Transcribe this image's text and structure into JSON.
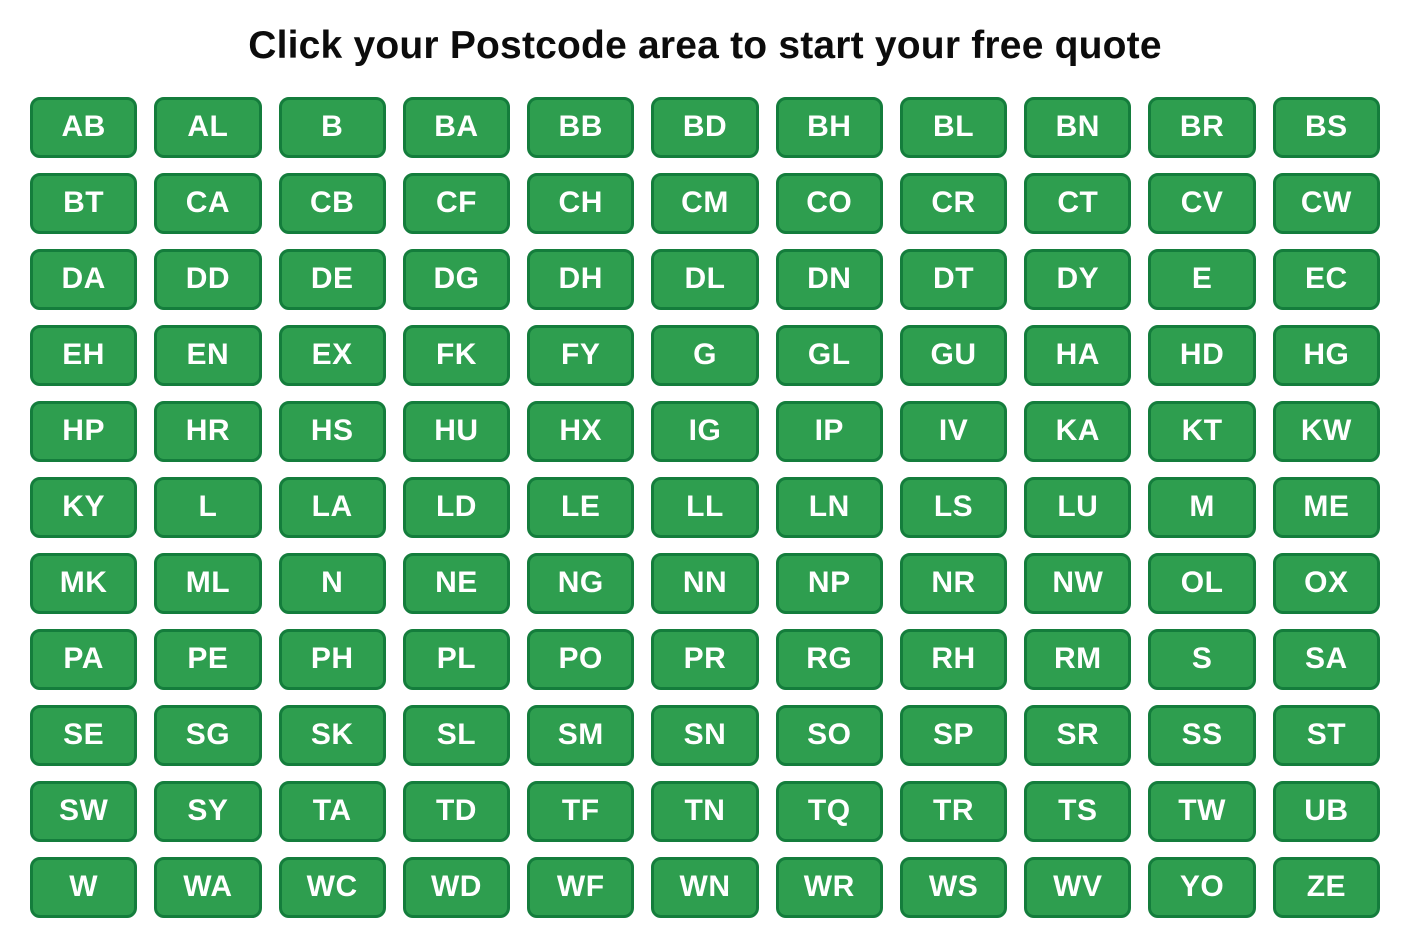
{
  "page": {
    "background": "#ffffff"
  },
  "header": {
    "title": "Click your Postcode area to start your free quote"
  },
  "colors": {
    "title_text": "#0c0c0c",
    "button_fill": "#2E9E4F",
    "button_border": "#147D3C",
    "button_text": "#ffffff"
  },
  "postcode_areas": [
    "AB",
    "AL",
    "B",
    "BA",
    "BB",
    "BD",
    "BH",
    "BL",
    "BN",
    "BR",
    "BS",
    "BT",
    "CA",
    "CB",
    "CF",
    "CH",
    "CM",
    "CO",
    "CR",
    "CT",
    "CV",
    "CW",
    "DA",
    "DD",
    "DE",
    "DG",
    "DH",
    "DL",
    "DN",
    "DT",
    "DY",
    "E",
    "EC",
    "EH",
    "EN",
    "EX",
    "FK",
    "FY",
    "G",
    "GL",
    "GU",
    "HA",
    "HD",
    "HG",
    "HP",
    "HR",
    "HS",
    "HU",
    "HX",
    "IG",
    "IP",
    "IV",
    "KA",
    "KT",
    "KW",
    "KY",
    "L",
    "LA",
    "LD",
    "LE",
    "LL",
    "LN",
    "LS",
    "LU",
    "M",
    "ME",
    "MK",
    "ML",
    "N",
    "NE",
    "NG",
    "NN",
    "NP",
    "NR",
    "NW",
    "OL",
    "OX",
    "PA",
    "PE",
    "PH",
    "PL",
    "PO",
    "PR",
    "RG",
    "RH",
    "RM",
    "S",
    "SA",
    "SE",
    "SG",
    "SK",
    "SL",
    "SM",
    "SN",
    "SO",
    "SP",
    "SR",
    "SS",
    "ST",
    "SW",
    "SY",
    "TA",
    "TD",
    "TF",
    "TN",
    "TQ",
    "TR",
    "TS",
    "TW",
    "UB",
    "W",
    "WA",
    "WC",
    "WD",
    "WF",
    "WN",
    "WR",
    "WS",
    "WV",
    "YO",
    "ZE"
  ]
}
